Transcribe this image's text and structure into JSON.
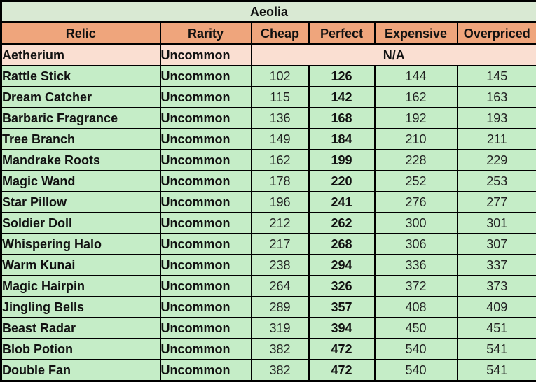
{
  "table": {
    "title": "Aeolia",
    "columns": [
      "Relic",
      "Rarity",
      "Cheap",
      "Perfect",
      "Expensive",
      "Overpriced"
    ],
    "na_row": {
      "relic": "Aetherium",
      "rarity": "Uncommon",
      "value": "N/A"
    },
    "rows": [
      {
        "relic": "Rattle Stick",
        "rarity": "Uncommon",
        "cheap": "102",
        "perfect": "126",
        "expensive": "144",
        "overpriced": "145"
      },
      {
        "relic": "Dream Catcher",
        "rarity": "Uncommon",
        "cheap": "115",
        "perfect": "142",
        "expensive": "162",
        "overpriced": "163"
      },
      {
        "relic": "Barbaric Fragrance",
        "rarity": "Uncommon",
        "cheap": "136",
        "perfect": "168",
        "expensive": "192",
        "overpriced": "193"
      },
      {
        "relic": "Tree Branch",
        "rarity": "Uncommon",
        "cheap": "149",
        "perfect": "184",
        "expensive": "210",
        "overpriced": "211"
      },
      {
        "relic": "Mandrake Roots",
        "rarity": "Uncommon",
        "cheap": "162",
        "perfect": "199",
        "expensive": "228",
        "overpriced": "229"
      },
      {
        "relic": "Magic Wand",
        "rarity": "Uncommon",
        "cheap": "178",
        "perfect": "220",
        "expensive": "252",
        "overpriced": "253"
      },
      {
        "relic": "Star Pillow",
        "rarity": "Uncommon",
        "cheap": "196",
        "perfect": "241",
        "expensive": "276",
        "overpriced": "277"
      },
      {
        "relic": "Soldier Doll",
        "rarity": "Uncommon",
        "cheap": "212",
        "perfect": "262",
        "expensive": "300",
        "overpriced": "301"
      },
      {
        "relic": "Whispering Halo",
        "rarity": "Uncommon",
        "cheap": "217",
        "perfect": "268",
        "expensive": "306",
        "overpriced": "307"
      },
      {
        "relic": "Warm Kunai",
        "rarity": "Uncommon",
        "cheap": "238",
        "perfect": "294",
        "expensive": "336",
        "overpriced": "337"
      },
      {
        "relic": "Magic Hairpin",
        "rarity": "Uncommon",
        "cheap": "264",
        "perfect": "326",
        "expensive": "372",
        "overpriced": "373"
      },
      {
        "relic": "Jingling Bells",
        "rarity": "Uncommon",
        "cheap": "289",
        "perfect": "357",
        "expensive": "408",
        "overpriced": "409"
      },
      {
        "relic": "Beast Radar",
        "rarity": "Uncommon",
        "cheap": "319",
        "perfect": "394",
        "expensive": "450",
        "overpriced": "451"
      },
      {
        "relic": "Blob Potion",
        "rarity": "Uncommon",
        "cheap": "382",
        "perfect": "472",
        "expensive": "540",
        "overpriced": "541"
      },
      {
        "relic": "Double Fan",
        "rarity": "Uncommon",
        "cheap": "382",
        "perfect": "472",
        "expensive": "540",
        "overpriced": "541"
      }
    ]
  },
  "colors": {
    "title_bg": "#d9e9d3",
    "header_bg": "#efa57c",
    "na_bg": "#fadfd2",
    "row_bg": "#c5edc7",
    "border": "#000000",
    "text": "#111111"
  },
  "chart_data": {
    "type": "table",
    "title": "Aeolia",
    "columns": [
      "Relic",
      "Rarity",
      "Cheap",
      "Perfect",
      "Expensive",
      "Overpriced"
    ],
    "rows": [
      [
        "Aetherium",
        "Uncommon",
        "N/A",
        "N/A",
        "N/A",
        "N/A"
      ],
      [
        "Rattle Stick",
        "Uncommon",
        102,
        126,
        144,
        145
      ],
      [
        "Dream Catcher",
        "Uncommon",
        115,
        142,
        162,
        163
      ],
      [
        "Barbaric Fragrance",
        "Uncommon",
        136,
        168,
        192,
        193
      ],
      [
        "Tree Branch",
        "Uncommon",
        149,
        184,
        210,
        211
      ],
      [
        "Mandrake Roots",
        "Uncommon",
        162,
        199,
        228,
        229
      ],
      [
        "Magic Wand",
        "Uncommon",
        178,
        220,
        252,
        253
      ],
      [
        "Star Pillow",
        "Uncommon",
        196,
        241,
        276,
        277
      ],
      [
        "Soldier Doll",
        "Uncommon",
        212,
        262,
        300,
        301
      ],
      [
        "Whispering Halo",
        "Uncommon",
        217,
        268,
        306,
        307
      ],
      [
        "Warm Kunai",
        "Uncommon",
        238,
        294,
        336,
        337
      ],
      [
        "Magic Hairpin",
        "Uncommon",
        264,
        326,
        372,
        373
      ],
      [
        "Jingling Bells",
        "Uncommon",
        289,
        357,
        408,
        409
      ],
      [
        "Beast Radar",
        "Uncommon",
        319,
        394,
        450,
        451
      ],
      [
        "Blob Potion",
        "Uncommon",
        382,
        472,
        540,
        541
      ],
      [
        "Double Fan",
        "Uncommon",
        382,
        472,
        540,
        541
      ]
    ],
    "notes": "Perfect column values are rendered bold; Aetherium price cells are merged into a single N/A cell"
  }
}
